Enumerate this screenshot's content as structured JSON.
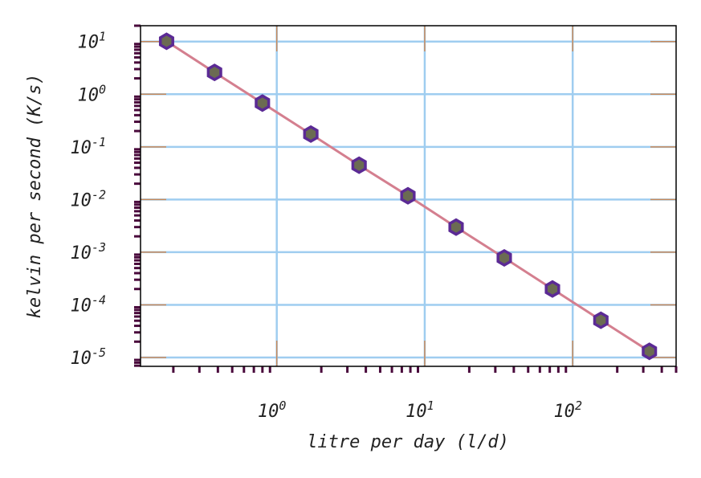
{
  "chart_data": {
    "type": "line",
    "xlabel": "litre per day (l/d)",
    "ylabel": "kelvin per second (K/s)",
    "xscale": "log",
    "yscale": "log",
    "xlim": [
      0.12,
      500
    ],
    "ylim": [
      6.8e-06,
      20
    ],
    "grid": true,
    "x_ticks": [
      {
        "base": "10",
        "exp": "0",
        "value": 1
      },
      {
        "base": "10",
        "exp": "1",
        "value": 10
      },
      {
        "base": "10",
        "exp": "2",
        "value": 100
      }
    ],
    "y_ticks": [
      {
        "base": "10",
        "exp": "1",
        "value": 10
      },
      {
        "base": "10",
        "exp": "0",
        "value": 1
      },
      {
        "base": "10",
        "exp": "-1",
        "value": 0.1
      },
      {
        "base": "10",
        "exp": "-2",
        "value": 0.01
      },
      {
        "base": "10",
        "exp": "-3",
        "value": 0.001
      },
      {
        "base": "10",
        "exp": "-4",
        "value": 0.0001
      },
      {
        "base": "10",
        "exp": "-5",
        "value": 1e-05
      }
    ],
    "series": [
      {
        "x": [
          0.18,
          0.38,
          0.8,
          1.7,
          3.6,
          7.7,
          16.3,
          34.5,
          73,
          155,
          330
        ],
        "y": [
          10.1,
          2.6,
          0.68,
          0.175,
          0.045,
          0.0118,
          0.003,
          0.00078,
          0.0002,
          5.1e-05,
          1.31e-05
        ],
        "line_color": "#d47f8f",
        "marker": "hexagon",
        "marker_edge_color": "#5b2a95",
        "marker_face_color": "#6b6b52"
      }
    ],
    "colors": {
      "grid": "#9fcdf0",
      "axis_ticks": "#4a0a3c",
      "opposite_ticks": "#c98a5a"
    }
  }
}
